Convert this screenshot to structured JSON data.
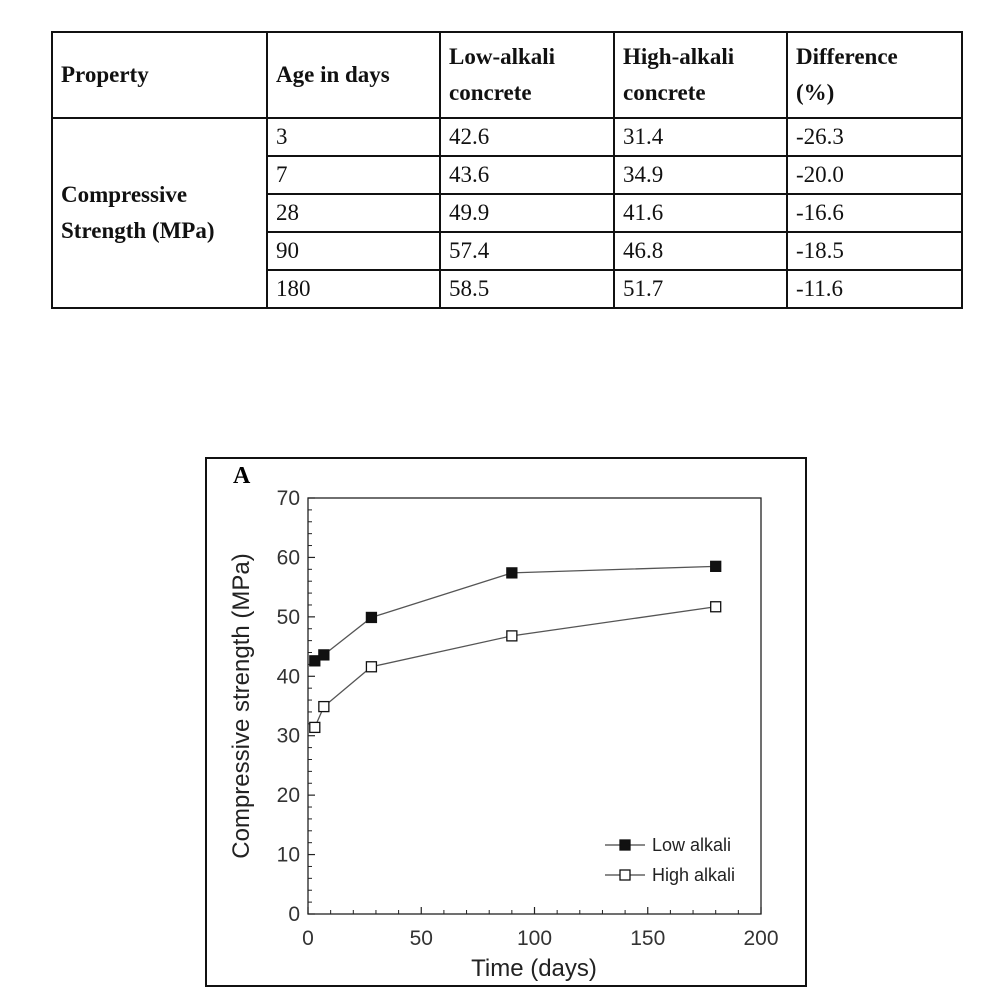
{
  "table": {
    "headers": [
      [
        "Property"
      ],
      [
        "Age in days"
      ],
      [
        "Low-alkali",
        "concrete"
      ],
      [
        "High-alkali",
        "concrete"
      ],
      [
        "Difference",
        "(%)"
      ]
    ],
    "property": [
      "Compressive",
      "Strength (MPa)"
    ],
    "rows": [
      [
        "3",
        "42.6",
        "31.4",
        "-26.3"
      ],
      [
        "7",
        "43.6",
        "34.9",
        "-20.0"
      ],
      [
        "28",
        "49.9",
        "41.6",
        "-16.6"
      ],
      [
        "90",
        "57.4",
        "46.8",
        "-18.5"
      ],
      [
        "180",
        "58.5",
        "51.7",
        "-11.6"
      ]
    ]
  },
  "chart_data": {
    "type": "line",
    "panel_label": "A",
    "xlabel": "Time (days)",
    "ylabel": "Compressive strength (MPa)",
    "xlim": [
      0,
      200
    ],
    "ylim": [
      0,
      70
    ],
    "x_ticks": [
      "0",
      "50",
      "100",
      "150",
      "200"
    ],
    "y_ticks": [
      "0",
      "10",
      "20",
      "30",
      "40",
      "50",
      "60",
      "70"
    ],
    "x": [
      3,
      7,
      28,
      90,
      180
    ],
    "series": [
      {
        "name": "Low alkali",
        "values": [
          42.6,
          43.6,
          49.9,
          57.4,
          58.5
        ],
        "marker": "filled-square",
        "color": "#111111"
      },
      {
        "name": "High alkali",
        "values": [
          31.4,
          34.9,
          41.6,
          46.8,
          51.7
        ],
        "marker": "open-square",
        "color": "#111111"
      }
    ],
    "legend_position": "bottom-right",
    "grid": false
  }
}
